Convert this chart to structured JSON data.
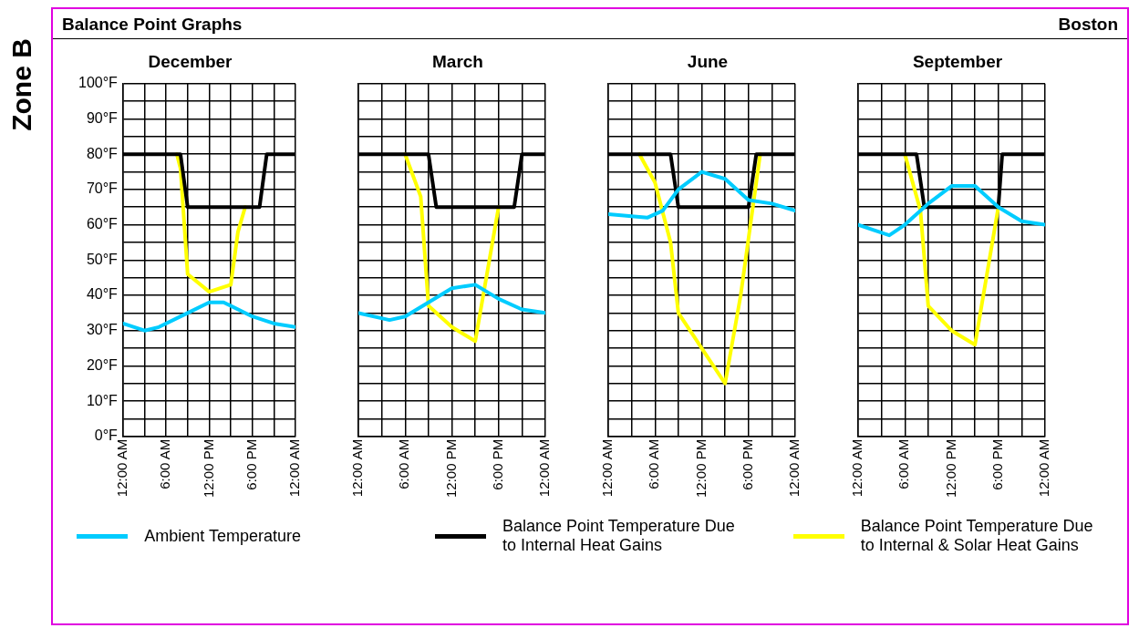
{
  "chart_data": [
    {
      "type": "line",
      "title": "December",
      "annotations": [
        "Zone B",
        "Balance Point Graphs",
        "Boston"
      ],
      "xlim": [
        0,
        24
      ],
      "xticks": [
        {
          "value": 0,
          "label": "12:00 AM"
        },
        {
          "value": 3,
          "label": null
        },
        {
          "value": 6,
          "label": "6:00 AM"
        },
        {
          "value": 9,
          "label": null
        },
        {
          "value": 12,
          "label": "12:00 PM"
        },
        {
          "value": 15,
          "label": null
        },
        {
          "value": 18,
          "label": "6:00 PM"
        },
        {
          "value": 21,
          "label": null
        },
        {
          "value": 24,
          "label": "12:00 AM"
        }
      ],
      "ylim": [
        0,
        100
      ],
      "yticks": [
        {
          "value": 0,
          "label": "0°F"
        },
        {
          "value": 5,
          "label": null
        },
        {
          "value": 10,
          "label": "10°F"
        },
        {
          "value": 15,
          "label": null
        },
        {
          "value": 20,
          "label": "20°F"
        },
        {
          "value": 25,
          "label": null
        },
        {
          "value": 30,
          "label": "30°F"
        },
        {
          "value": 35,
          "label": null
        },
        {
          "value": 40,
          "label": "40°F"
        },
        {
          "value": 45,
          "label": null
        },
        {
          "value": 50,
          "label": "50°F"
        },
        {
          "value": 55,
          "label": null
        },
        {
          "value": 60,
          "label": "60°F"
        },
        {
          "value": 65,
          "label": null
        },
        {
          "value": 70,
          "label": "70°F"
        },
        {
          "value": 75,
          "label": null
        },
        {
          "value": 80,
          "label": "80°F"
        },
        {
          "value": 85,
          "label": null
        },
        {
          "value": 90,
          "label": "90°F"
        },
        {
          "value": 95,
          "label": null
        },
        {
          "value": 100,
          "label": "100°F"
        }
      ],
      "grid": true,
      "legend": "bottom",
      "marker": "none",
      "series": [
        {
          "name": "Ambient Temperature",
          "color": "#00ccff",
          "x": [
            0,
            3,
            5,
            9,
            12,
            14,
            18,
            21,
            24
          ],
          "values": [
            32,
            30,
            31,
            35,
            38,
            38,
            34,
            32,
            31
          ]
        },
        {
          "name": "Balance Point Temperature Due to Internal Heat Gains",
          "color": "#000000",
          "x": [
            0,
            8,
            9,
            19,
            20,
            24
          ],
          "values": [
            80,
            80,
            65,
            65,
            80,
            80
          ]
        },
        {
          "name": "Balance Point Temperature Due to Internal & Solar Heat Gains",
          "color": "#ffff00",
          "x": [
            7.5,
            8,
            9,
            12,
            15,
            16,
            17
          ],
          "values": [
            80,
            76,
            46,
            41,
            43,
            58,
            65
          ]
        }
      ]
    },
    {
      "type": "line",
      "title": "March",
      "tick_labels": "x",
      "xlim": [
        0,
        24
      ],
      "xticks": [
        {
          "value": 0,
          "label": "12:00 AM"
        },
        {
          "value": 3,
          "label": null
        },
        {
          "value": 6,
          "label": "6:00 AM"
        },
        {
          "value": 9,
          "label": null
        },
        {
          "value": 12,
          "label": "12:00 PM"
        },
        {
          "value": 15,
          "label": null
        },
        {
          "value": 18,
          "label": "6:00 PM"
        },
        {
          "value": 21,
          "label": null
        },
        {
          "value": 24,
          "label": "12:00 AM"
        }
      ],
      "ylim": [
        0,
        100
      ],
      "yticks": [
        0,
        5,
        10,
        15,
        20,
        25,
        30,
        35,
        40,
        45,
        50,
        55,
        60,
        65,
        70,
        75,
        80,
        85,
        90,
        95,
        100
      ],
      "grid": true,
      "marker": "none",
      "series": [
        {
          "color": "#00ccff",
          "x": [
            0,
            4,
            6,
            9,
            12,
            15,
            18,
            21,
            24
          ],
          "values": [
            35,
            33,
            34,
            38,
            42,
            43,
            39,
            36,
            35
          ]
        },
        {
          "color": "#000000",
          "x": [
            0,
            9,
            10,
            20,
            21,
            24
          ],
          "values": [
            80,
            80,
            65,
            65,
            80,
            80
          ]
        },
        {
          "color": "#ffff00",
          "x": [
            6,
            8,
            9,
            12,
            15,
            18
          ],
          "values": [
            80,
            68,
            37,
            31,
            27,
            65
          ]
        }
      ]
    },
    {
      "type": "line",
      "title": "June",
      "tick_labels": "x",
      "xlim": [
        0,
        24
      ],
      "xticks": [
        {
          "value": 0,
          "label": "12:00 AM"
        },
        {
          "value": 3,
          "label": null
        },
        {
          "value": 6,
          "label": "6:00 AM"
        },
        {
          "value": 9,
          "label": null
        },
        {
          "value": 12,
          "label": "12:00 PM"
        },
        {
          "value": 15,
          "label": null
        },
        {
          "value": 18,
          "label": "6:00 PM"
        },
        {
          "value": 21,
          "label": null
        },
        {
          "value": 24,
          "label": "12:00 AM"
        }
      ],
      "ylim": [
        0,
        100
      ],
      "yticks": [
        0,
        5,
        10,
        15,
        20,
        25,
        30,
        35,
        40,
        45,
        50,
        55,
        60,
        65,
        70,
        75,
        80,
        85,
        90,
        95,
        100
      ],
      "grid": true,
      "marker": "none",
      "series": [
        {
          "color": "#00ccff",
          "x": [
            0,
            5,
            7,
            9,
            12,
            15,
            18,
            21,
            24
          ],
          "values": [
            63,
            62,
            64,
            70,
            75,
            73,
            67,
            66,
            64
          ]
        },
        {
          "color": "#000000",
          "x": [
            0,
            8,
            9,
            18,
            19,
            24
          ],
          "values": [
            80,
            80,
            65,
            65,
            80,
            80
          ]
        },
        {
          "color": "#ffff00",
          "x": [
            4,
            6,
            8,
            9,
            12,
            15,
            17,
            19.5
          ],
          "values": [
            80,
            72,
            55,
            35,
            25,
            15,
            40,
            80
          ]
        }
      ]
    },
    {
      "type": "line",
      "title": "September",
      "tick_labels": "x",
      "xlim": [
        0,
        24
      ],
      "xticks": [
        {
          "value": 0,
          "label": "12:00 AM"
        },
        {
          "value": 3,
          "label": null
        },
        {
          "value": 6,
          "label": "6:00 AM"
        },
        {
          "value": 9,
          "label": null
        },
        {
          "value": 12,
          "label": "12:00 PM"
        },
        {
          "value": 15,
          "label": null
        },
        {
          "value": 18,
          "label": "6:00 PM"
        },
        {
          "value": 21,
          "label": null
        },
        {
          "value": 24,
          "label": "12:00 AM"
        }
      ],
      "ylim": [
        0,
        100
      ],
      "yticks": [
        0,
        5,
        10,
        15,
        20,
        25,
        30,
        35,
        40,
        45,
        50,
        55,
        60,
        65,
        70,
        75,
        80,
        85,
        90,
        95,
        100
      ],
      "grid": true,
      "marker": "none",
      "series": [
        {
          "color": "#00ccff",
          "x": [
            0,
            4,
            6,
            9,
            12,
            15,
            18,
            21,
            24
          ],
          "values": [
            60,
            57,
            60,
            66,
            71,
            71,
            65,
            61,
            60
          ]
        },
        {
          "color": "#000000",
          "x": [
            0,
            7.5,
            8.5,
            18,
            18.5,
            24
          ],
          "values": [
            80,
            80,
            65,
            65,
            80,
            80
          ]
        },
        {
          "color": "#ffff00",
          "x": [
            6,
            8,
            9,
            12,
            15,
            18
          ],
          "values": [
            80,
            64,
            37,
            30,
            26,
            65
          ]
        }
      ]
    }
  ]
}
